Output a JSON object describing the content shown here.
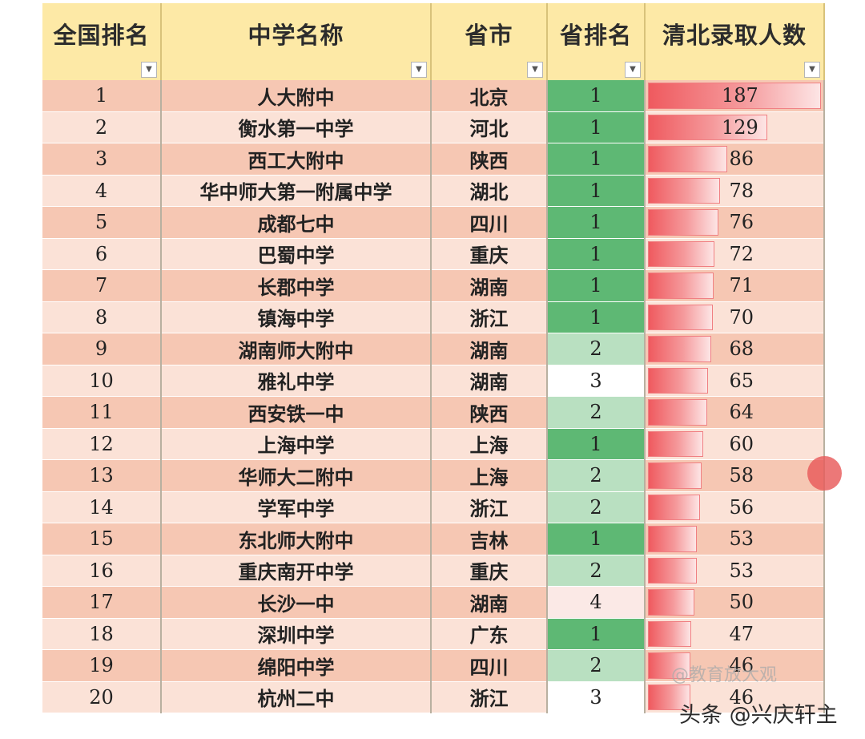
{
  "table": {
    "headers": [
      "全国排名",
      "中学名称",
      "省市",
      "省排名",
      "清北录取人数"
    ],
    "filter_icon": "filter-dropdown-icon",
    "max_count": 187,
    "rows": [
      {
        "rank": "1",
        "school": "人大附中",
        "city": "北京",
        "prov_rank": "1",
        "count": "187"
      },
      {
        "rank": "2",
        "school": "衡水第一中学",
        "city": "河北",
        "prov_rank": "1",
        "count": "129"
      },
      {
        "rank": "3",
        "school": "西工大附中",
        "city": "陕西",
        "prov_rank": "1",
        "count": "86"
      },
      {
        "rank": "4",
        "school": "华中师大第一附属中学",
        "city": "湖北",
        "prov_rank": "1",
        "count": "78"
      },
      {
        "rank": "5",
        "school": "成都七中",
        "city": "四川",
        "prov_rank": "1",
        "count": "76"
      },
      {
        "rank": "6",
        "school": "巴蜀中学",
        "city": "重庆",
        "prov_rank": "1",
        "count": "72"
      },
      {
        "rank": "7",
        "school": "长郡中学",
        "city": "湖南",
        "prov_rank": "1",
        "count": "71"
      },
      {
        "rank": "8",
        "school": "镇海中学",
        "city": "浙江",
        "prov_rank": "1",
        "count": "70"
      },
      {
        "rank": "9",
        "school": "湖南师大附中",
        "city": "湖南",
        "prov_rank": "2",
        "count": "68"
      },
      {
        "rank": "10",
        "school": "雅礼中学",
        "city": "湖南",
        "prov_rank": "3",
        "count": "65"
      },
      {
        "rank": "11",
        "school": "西安铁一中",
        "city": "陕西",
        "prov_rank": "2",
        "count": "64"
      },
      {
        "rank": "12",
        "school": "上海中学",
        "city": "上海",
        "prov_rank": "1",
        "count": "60"
      },
      {
        "rank": "13",
        "school": "华师大二附中",
        "city": "上海",
        "prov_rank": "2",
        "count": "58"
      },
      {
        "rank": "14",
        "school": "学军中学",
        "city": "浙江",
        "prov_rank": "2",
        "count": "56"
      },
      {
        "rank": "15",
        "school": "东北师大附中",
        "city": "吉林",
        "prov_rank": "1",
        "count": "53"
      },
      {
        "rank": "16",
        "school": "重庆南开中学",
        "city": "重庆",
        "prov_rank": "2",
        "count": "53"
      },
      {
        "rank": "17",
        "school": "长沙一中",
        "city": "湖南",
        "prov_rank": "4",
        "count": "50"
      },
      {
        "rank": "18",
        "school": "深圳中学",
        "city": "广东",
        "prov_rank": "1",
        "count": "47"
      },
      {
        "rank": "19",
        "school": "绵阳中学",
        "city": "四川",
        "prov_rank": "2",
        "count": "46"
      },
      {
        "rank": "20",
        "school": "杭州二中",
        "city": "浙江",
        "prov_rank": "3",
        "count": "46"
      }
    ]
  },
  "watermark": "@教育放大观",
  "attribution": "头条 @兴庆轩主",
  "colors": {
    "header_bg": "#fde9a6",
    "row_odd": "#f6c7b3",
    "row_even": "#fbe2d7",
    "prov_rank_1": "#5eb874",
    "prov_rank_2": "#b9e0c1",
    "prov_rank_3": "#ffffff",
    "prov_rank_4": "#fbe9e6",
    "data_bar": "#ef5a5f"
  }
}
